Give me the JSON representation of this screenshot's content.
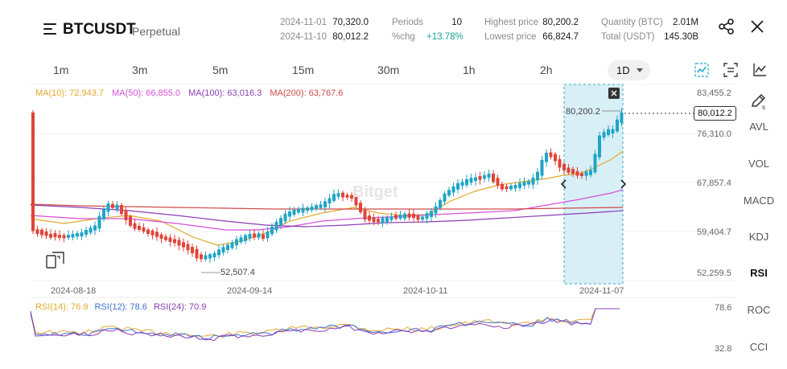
{
  "header": {
    "symbol": "BTCUSDT",
    "contract_type": "Perpetual",
    "date_1": "2024-11-01",
    "value_1": "70,320.0",
    "date_2": "2024-11-10",
    "value_2": "80,012.2",
    "periods_label": "Periods",
    "periods_value": "10",
    "chg_label": "%chg",
    "chg_value": "+13.78%",
    "high_label": "Highest price",
    "high_value": "80,200.2",
    "low_label": "Lowest price",
    "low_value": "66,824.7",
    "qty_label": "Quantity (BTC)",
    "qty_value": "2.01M",
    "total_label": "Total (USDT)",
    "total_value": "145.30B",
    "icons": [
      "menu-icon",
      "share-icon",
      "close-icon"
    ]
  },
  "timeframes": [
    "1m",
    "3m",
    "5m",
    "15m",
    "30m",
    "1h",
    "2h"
  ],
  "active_timeframe": "1D",
  "indicators": [
    "AVL",
    "VOL",
    "MACD",
    "KDJ",
    "RSI",
    "ROC",
    "CCI"
  ],
  "active_indicator": "RSI",
  "ma_legend": [
    {
      "text": "MA(10): 72,943.7",
      "color": "#e3a92b"
    },
    {
      "text": "MA(50): 66,855.0",
      "color": "#d64fd6"
    },
    {
      "text": "MA(100): 63,016.3",
      "color": "#8a3db5"
    },
    {
      "text": "MA(200): 63,767.6",
      "color": "#d04a4a"
    }
  ],
  "rsi_legend": [
    {
      "text": "RSI(14): 76.9",
      "color": "#e3a92b"
    },
    {
      "text": "RSI(12): 78.6",
      "color": "#3f6fd9"
    },
    {
      "text": "RSI(24): 70.9",
      "color": "#8a3db5"
    }
  ],
  "chart": {
    "price_axis": [
      "83,455.2",
      "76,310.0",
      "67,857.4",
      "59,404.7",
      "52,259.5"
    ],
    "date_axis": [
      "2024-08-18",
      "2024-09-14",
      "2024-10-11",
      "2024-11-07"
    ],
    "current_price": "80,012.2",
    "high_marker": "80,200.2",
    "low_marker": "52,507.4",
    "rsi_axis": [
      "78.6",
      "32.8"
    ],
    "watermark": "Bitget",
    "colors": {
      "up": "#1fa5c7",
      "down": "#e0443a",
      "selection": "#d8eff6"
    }
  }
}
